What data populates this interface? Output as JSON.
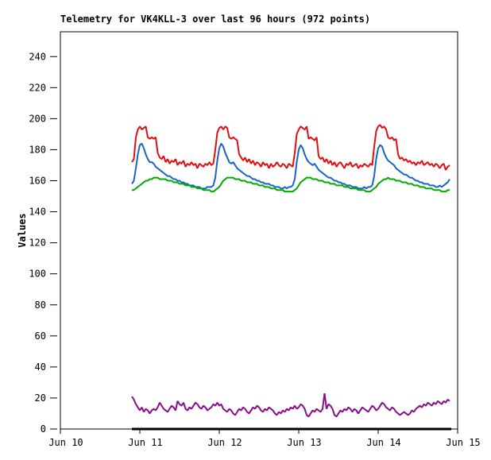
{
  "chart_data": {
    "type": "line",
    "title": "Telemetry for VK4KLL-3 over last 96 hours (972 points)",
    "ylabel": "Values",
    "ylim": [
      0,
      256
    ],
    "yticks": [
      0,
      20,
      40,
      60,
      80,
      100,
      120,
      140,
      160,
      180,
      200,
      220,
      240
    ],
    "xlim_days": [
      0,
      5
    ],
    "xtick_labels": [
      "Jun 10",
      "Jun 11",
      "Jun 12",
      "Jun 13",
      "Jun 14",
      "Jun 15"
    ],
    "grid": false,
    "legend": "none",
    "frame_color": "#000000",
    "background": "#ffffff",
    "x0_day": 0.9,
    "dx_day": 0.025,
    "series": [
      {
        "name": "channel-red",
        "color": "#e01010",
        "width": 2,
        "values": [
          172,
          174,
          188,
          193,
          195,
          193,
          194,
          195,
          188,
          187,
          188,
          187,
          188,
          178,
          175,
          174,
          176,
          172,
          174,
          171,
          173,
          172,
          174,
          170,
          172,
          171,
          173,
          169,
          171,
          170,
          172,
          170,
          171,
          168,
          171,
          170,
          169,
          171,
          170,
          172,
          170,
          171,
          180,
          191,
          194,
          195,
          193,
          195,
          194,
          188,
          187,
          188,
          187,
          186,
          177,
          175,
          173,
          175,
          172,
          174,
          171,
          173,
          170,
          172,
          171,
          169,
          172,
          170,
          171,
          168,
          171,
          169,
          170,
          172,
          170,
          169,
          171,
          170,
          168,
          171,
          170,
          169,
          178,
          190,
          193,
          195,
          194,
          193,
          195,
          187,
          188,
          187,
          186,
          188,
          176,
          174,
          175,
          172,
          174,
          171,
          173,
          170,
          172,
          169,
          171,
          172,
          170,
          168,
          171,
          170,
          172,
          169,
          170,
          171,
          168,
          170,
          169,
          171,
          170,
          169,
          171,
          170,
          182,
          192,
          195,
          196,
          194,
          195,
          193,
          188,
          187,
          188,
          186,
          187,
          177,
          174,
          175,
          173,
          174,
          172,
          173,
          171,
          172,
          170,
          172,
          171,
          173,
          170,
          171,
          172,
          170,
          171,
          169,
          171,
          170,
          168,
          170,
          171,
          167,
          169,
          170
        ]
      },
      {
        "name": "channel-blue",
        "color": "#1a64c8",
        "width": 2,
        "values": [
          158,
          160,
          168,
          177,
          183,
          184,
          181,
          177,
          174,
          172,
          172,
          171,
          169,
          168,
          167,
          166,
          165,
          164,
          163,
          163,
          162,
          161,
          161,
          160,
          160,
          159,
          159,
          158,
          158,
          157,
          157,
          157,
          156,
          156,
          156,
          155,
          155,
          155,
          156,
          156,
          156,
          157,
          162,
          173,
          181,
          184,
          182,
          178,
          175,
          172,
          171,
          172,
          170,
          168,
          167,
          166,
          165,
          164,
          163,
          163,
          162,
          161,
          161,
          160,
          160,
          159,
          159,
          158,
          158,
          158,
          157,
          157,
          156,
          156,
          156,
          155,
          155,
          156,
          155,
          156,
          156,
          157,
          161,
          172,
          180,
          183,
          181,
          177,
          174,
          172,
          171,
          170,
          171,
          169,
          167,
          166,
          165,
          164,
          163,
          162,
          162,
          161,
          160,
          160,
          159,
          159,
          158,
          158,
          157,
          157,
          157,
          156,
          156,
          156,
          155,
          155,
          155,
          156,
          155,
          156,
          156,
          157,
          163,
          174,
          181,
          183,
          182,
          178,
          175,
          173,
          172,
          171,
          170,
          168,
          167,
          166,
          165,
          164,
          164,
          163,
          162,
          162,
          161,
          160,
          160,
          159,
          159,
          158,
          158,
          158,
          157,
          157,
          157,
          156,
          156,
          157,
          156,
          157,
          158,
          159,
          161
        ]
      },
      {
        "name": "channel-green",
        "color": "#00aa00",
        "width": 2,
        "values": [
          154,
          154,
          155,
          156,
          157,
          158,
          159,
          160,
          160,
          161,
          161,
          162,
          162,
          162,
          161,
          161,
          161,
          161,
          160,
          160,
          160,
          159,
          159,
          159,
          158,
          158,
          158,
          157,
          157,
          157,
          156,
          156,
          156,
          155,
          155,
          155,
          154,
          154,
          154,
          154,
          153,
          153,
          154,
          155,
          156,
          158,
          160,
          161,
          162,
          162,
          162,
          162,
          161,
          161,
          161,
          160,
          160,
          160,
          159,
          159,
          159,
          158,
          158,
          158,
          157,
          157,
          157,
          156,
          156,
          156,
          155,
          155,
          155,
          154,
          154,
          154,
          154,
          153,
          153,
          153,
          153,
          153,
          154,
          155,
          157,
          159,
          160,
          161,
          162,
          162,
          162,
          161,
          161,
          161,
          160,
          160,
          160,
          159,
          159,
          159,
          158,
          158,
          158,
          157,
          157,
          157,
          157,
          156,
          156,
          156,
          155,
          155,
          155,
          155,
          154,
          154,
          154,
          154,
          153,
          153,
          153,
          154,
          155,
          156,
          158,
          159,
          160,
          161,
          161,
          162,
          161,
          161,
          161,
          160,
          160,
          160,
          159,
          159,
          159,
          158,
          158,
          158,
          157,
          157,
          157,
          156,
          156,
          156,
          155,
          155,
          155,
          155,
          154,
          154,
          154,
          154,
          153,
          153,
          153,
          154,
          154
        ]
      },
      {
        "name": "channel-purple",
        "color": "#8a0d8a",
        "width": 2,
        "values": [
          21,
          19,
          16,
          14,
          12,
          14,
          11,
          13,
          12,
          10,
          12,
          13,
          12,
          14,
          17,
          15,
          13,
          12,
          11,
          13,
          15,
          14,
          12,
          18,
          16,
          15,
          17,
          13,
          12,
          14,
          13,
          15,
          17,
          16,
          14,
          13,
          15,
          14,
          12,
          13,
          14,
          16,
          15,
          17,
          15,
          16,
          13,
          12,
          11,
          13,
          12,
          10,
          9,
          11,
          13,
          12,
          14,
          13,
          11,
          10,
          12,
          14,
          13,
          15,
          14,
          12,
          11,
          13,
          12,
          14,
          13,
          12,
          10,
          9,
          11,
          10,
          12,
          11,
          13,
          12,
          14,
          13,
          15,
          13,
          14,
          16,
          15,
          13,
          9,
          8,
          10,
          12,
          11,
          13,
          12,
          11,
          13,
          23,
          13,
          16,
          15,
          13,
          9,
          8,
          10,
          12,
          11,
          13,
          12,
          14,
          13,
          11,
          13,
          12,
          10,
          12,
          14,
          13,
          12,
          11,
          13,
          15,
          14,
          12,
          13,
          15,
          17,
          16,
          14,
          13,
          12,
          14,
          13,
          11,
          10,
          9,
          10,
          11,
          10,
          9,
          10,
          12,
          11,
          13,
          14,
          15,
          14,
          16,
          15,
          17,
          16,
          15,
          17,
          16,
          18,
          17,
          16,
          18,
          17,
          19,
          18
        ]
      },
      {
        "name": "channel-black",
        "color": "#000000",
        "width": 3,
        "constant": 0,
        "x_span": [
          0.9,
          4.92
        ]
      }
    ]
  }
}
